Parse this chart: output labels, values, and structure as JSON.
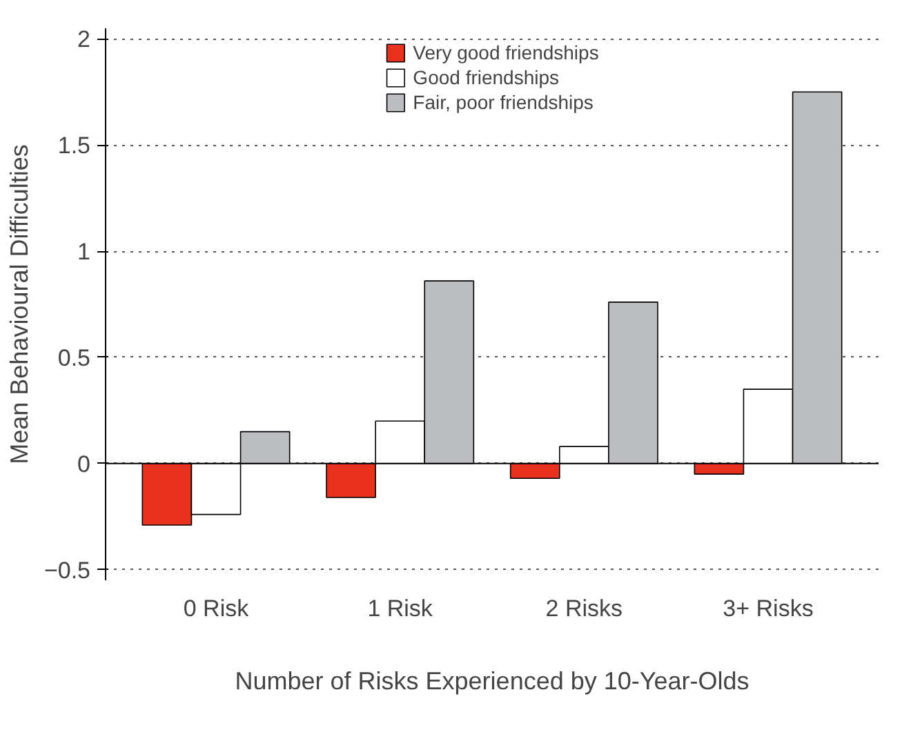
{
  "chart_data": {
    "type": "bar",
    "xlabel": "Number of Risks Experienced by 10-Year-Olds",
    "ylabel": "Mean Behavioural Difficulties",
    "categories": [
      "0 Risk",
      "1 Risk",
      "2 Risks",
      "3+ Risks"
    ],
    "series": [
      {
        "name": "Very good friendships",
        "color": "#e8321e",
        "values": [
          -0.29,
          -0.16,
          -0.07,
          -0.05
        ]
      },
      {
        "name": "Good friendships",
        "color": "#ffffff",
        "values": [
          -0.24,
          0.2,
          0.08,
          0.35
        ]
      },
      {
        "name": "Fair, poor friendships",
        "color": "#bcbdc0",
        "values": [
          0.15,
          0.86,
          0.76,
          1.75
        ]
      }
    ],
    "ylim": [
      -0.55,
      2.05
    ],
    "yticks": [
      -0.5,
      0,
      0.5,
      1,
      1.5,
      2
    ],
    "grid": "y",
    "legend": "top"
  }
}
